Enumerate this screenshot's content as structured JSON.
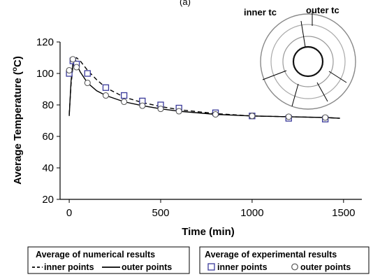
{
  "figure": {
    "panel_label": "(a)"
  },
  "chart_data": {
    "type": "line",
    "xlabel": "Time (min)",
    "ylabel": "Average Temperature (°C)",
    "ylabel_parts": {
      "before": "Average Temperature (",
      "sup": "o",
      "after": "C)"
    },
    "xlim": [
      -50,
      1600
    ],
    "ylim": [
      20,
      120
    ],
    "xticks": [
      0,
      500,
      1000,
      1500
    ],
    "yticks": [
      20,
      40,
      60,
      80,
      100,
      120
    ],
    "grid": false,
    "series": [
      {
        "name": "inner points",
        "group": "Average of numerical results",
        "style": "dashed",
        "color": "#000000",
        "x": [
          0,
          10,
          20,
          30,
          40,
          60,
          100,
          150,
          200,
          300,
          400,
          500,
          600,
          800,
          1000,
          1200,
          1400,
          1480
        ],
        "y": [
          74,
          93,
          104,
          109,
          110,
          108,
          102,
          96,
          91,
          85,
          81.5,
          79,
          77,
          74.5,
          73,
          72.5,
          72,
          71.5
        ]
      },
      {
        "name": "outer points",
        "group": "Average of numerical results",
        "style": "solid",
        "color": "#000000",
        "x": [
          0,
          10,
          20,
          30,
          40,
          60,
          100,
          150,
          200,
          300,
          400,
          500,
          600,
          800,
          1000,
          1200,
          1400,
          1480
        ],
        "y": [
          73,
          95,
          106,
          108,
          106,
          101,
          94,
          89,
          86,
          82,
          79.5,
          77.5,
          76,
          74,
          73,
          72.5,
          72,
          71.5
        ]
      },
      {
        "name": "inner points",
        "group": "Average of experimental results",
        "marker": "square",
        "color": "#3a3a9a",
        "x": [
          0,
          20,
          40,
          100,
          200,
          300,
          400,
          500,
          600,
          800,
          1000,
          1200,
          1400
        ],
        "y": [
          100,
          108,
          106,
          100,
          91,
          86,
          82.5,
          80,
          78,
          75,
          73,
          71.5,
          71
        ]
      },
      {
        "name": "outer points",
        "group": "Average of experimental results",
        "marker": "circle",
        "color": "#555555",
        "x": [
          0,
          20,
          40,
          100,
          200,
          300,
          400,
          500,
          600,
          800,
          1000,
          1200,
          1400
        ],
        "y": [
          102,
          109,
          104,
          94,
          86,
          82,
          79.5,
          77.5,
          76,
          74,
          73,
          72.5,
          72
        ]
      }
    ],
    "legends": [
      {
        "title": "Average of numerical results",
        "entries": [
          {
            "symbol": "dash",
            "label": "inner points"
          },
          {
            "symbol": "line",
            "label": "outer points"
          }
        ]
      },
      {
        "title": "Average of experimental results",
        "entries": [
          {
            "symbol": "square",
            "label": "inner points"
          },
          {
            "symbol": "circle",
            "label": "outer points"
          }
        ]
      }
    ]
  },
  "inset": {
    "inner_label": "inner tc",
    "outer_label": "outer tc"
  }
}
